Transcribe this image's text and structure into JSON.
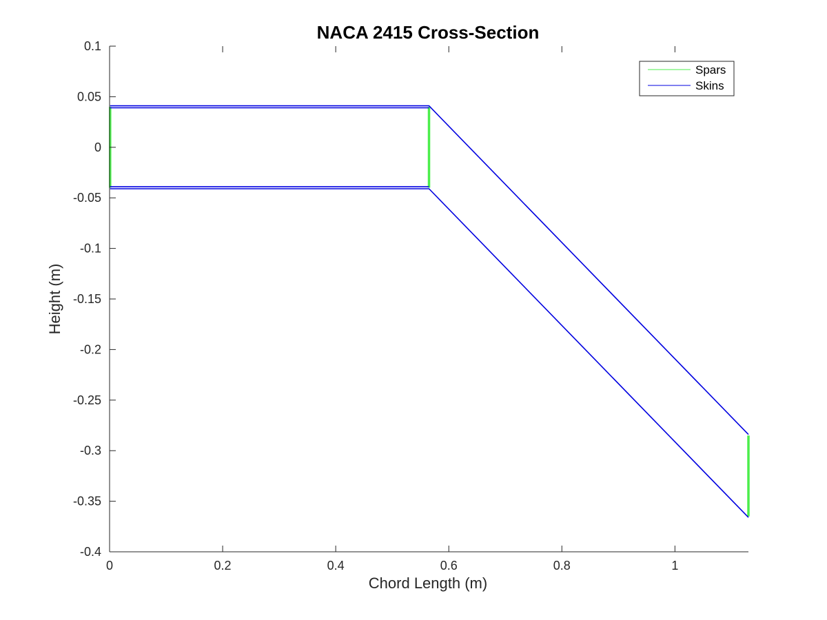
{
  "chart_data": {
    "type": "line",
    "title": "NACA 2415 Cross-Section",
    "xlabel": "Chord Length (m)",
    "ylabel": "Height (m)",
    "xlim": [
      0,
      1.13
    ],
    "ylim": [
      -0.4,
      0.1
    ],
    "xticks": [
      0,
      0.2,
      0.4,
      0.6,
      0.8,
      1
    ],
    "xtick_labels": [
      "0",
      "0.2",
      "0.4",
      "0.6",
      "0.8",
      "1"
    ],
    "yticks": [
      0.1,
      0.05,
      0,
      -0.05,
      -0.1,
      -0.15,
      -0.2,
      -0.25,
      -0.3,
      -0.35,
      -0.4
    ],
    "ytick_labels": [
      "0.1",
      "0.05",
      "0",
      "-0.05",
      "-0.1",
      "-0.15",
      "-0.2",
      "-0.25",
      "-0.3",
      "-0.35",
      "-0.4"
    ],
    "grid": false,
    "legend_position": "top-right",
    "series": [
      {
        "name": "Spars",
        "color": "#4cee4c",
        "segments": [
          {
            "x": [
              0.001,
              0.001
            ],
            "y": [
              0.04,
              -0.04
            ]
          },
          {
            "x": [
              0.565,
              0.565
            ],
            "y": [
              0.04,
              -0.04
            ]
          },
          {
            "x": [
              1.13,
              1.13
            ],
            "y": [
              -0.285,
              -0.365
            ]
          }
        ]
      },
      {
        "name": "Skins",
        "color": "#0000e0",
        "segments": [
          {
            "x": [
              0.001,
              0.565,
              1.13
            ],
            "y": [
              0.041,
              0.041,
              -0.284
            ]
          },
          {
            "x": [
              0.001,
              0.565
            ],
            "y": [
              0.039,
              0.039
            ]
          },
          {
            "x": [
              0.001,
              0.565
            ],
            "y": [
              -0.039,
              -0.039
            ]
          },
          {
            "x": [
              0.001,
              0.565,
              1.13
            ],
            "y": [
              -0.041,
              -0.041,
              -0.366
            ]
          }
        ]
      }
    ]
  }
}
